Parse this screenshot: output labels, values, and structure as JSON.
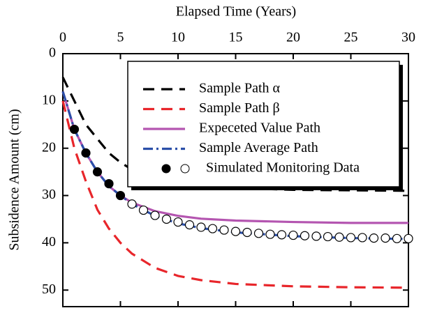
{
  "chart_data": {
    "type": "line",
    "x_label": "Elapsed Time (Years)",
    "y_label": "Subsidence Amount (cm)",
    "xlim": [
      0,
      30
    ],
    "xticks": [
      0,
      5,
      10,
      15,
      20,
      25,
      30
    ],
    "ylim": [
      0,
      53.5
    ],
    "yticks": [
      0,
      10,
      20,
      30,
      40,
      50
    ],
    "y_inverted": true,
    "x_axis_position": "top",
    "x": [
      0,
      1,
      2,
      3,
      4,
      5,
      6,
      8,
      10,
      12,
      15,
      20,
      25,
      30
    ],
    "series": [
      {
        "name": "Sample Path α",
        "color": "#000000",
        "style": "dashed",
        "values": [
          5,
          10,
          15,
          18,
          21,
          23,
          24.5,
          26.3,
          27.3,
          27.9,
          28.4,
          28.8,
          28.9,
          29
        ]
      },
      {
        "name": "Sample Path β",
        "color": "#e8262b",
        "style": "dashed",
        "values": [
          10,
          20,
          27,
          33,
          37,
          40,
          42.3,
          45.3,
          47,
          47.9,
          48.7,
          49.2,
          49.4,
          49.5
        ]
      },
      {
        "name": "Expeceted Value Path",
        "color": "#b455b0",
        "style": "solid",
        "values": [
          8,
          16,
          21,
          25,
          28,
          30,
          31.5,
          33.3,
          34.3,
          34.9,
          35.3,
          35.6,
          35.8,
          35.8
        ]
      },
      {
        "name": "Sample Average Path",
        "color": "#2b4fa8",
        "style": "dashdot",
        "values": [
          8,
          16,
          21,
          25,
          28,
          30,
          31.8,
          34.3,
          35.9,
          36.9,
          37.8,
          38.6,
          39,
          39.2
        ]
      },
      {
        "name": "Simulated Monitoring Data",
        "type": "scatter",
        "color": "#000000",
        "x": [
          1,
          2,
          3,
          4,
          5,
          6,
          7,
          8,
          9,
          10,
          11,
          12,
          13,
          14,
          15,
          16,
          17,
          18,
          19,
          20,
          21,
          22,
          23,
          24,
          25,
          26,
          27,
          28,
          29,
          30
        ],
        "values": [
          16,
          21,
          25,
          27.5,
          30,
          31.8,
          33.1,
          34.2,
          35,
          35.6,
          36.2,
          36.7,
          37,
          37.3,
          37.6,
          37.8,
          38,
          38.2,
          38.3,
          38.4,
          38.5,
          38.6,
          38.7,
          38.8,
          38.9,
          38.9,
          39,
          39,
          39.1,
          39.1
        ],
        "point_fills": [
          "#000000",
          "#000000",
          "#000000",
          "#000000",
          "#000000",
          "#ffffff",
          "#ffffff",
          "#ffffff",
          "#ffffff",
          "#ffffff",
          "#ffffff",
          "#ffffff",
          "#ffffff",
          "#ffffff",
          "#ffffff",
          "#ffffff",
          "#ffffff",
          "#ffffff",
          "#ffffff",
          "#ffffff",
          "#ffffff",
          "#ffffff",
          "#ffffff",
          "#ffffff",
          "#ffffff",
          "#ffffff",
          "#ffffff",
          "#ffffff",
          "#ffffff",
          "#ffffff"
        ]
      }
    ],
    "legend": "upper right"
  }
}
